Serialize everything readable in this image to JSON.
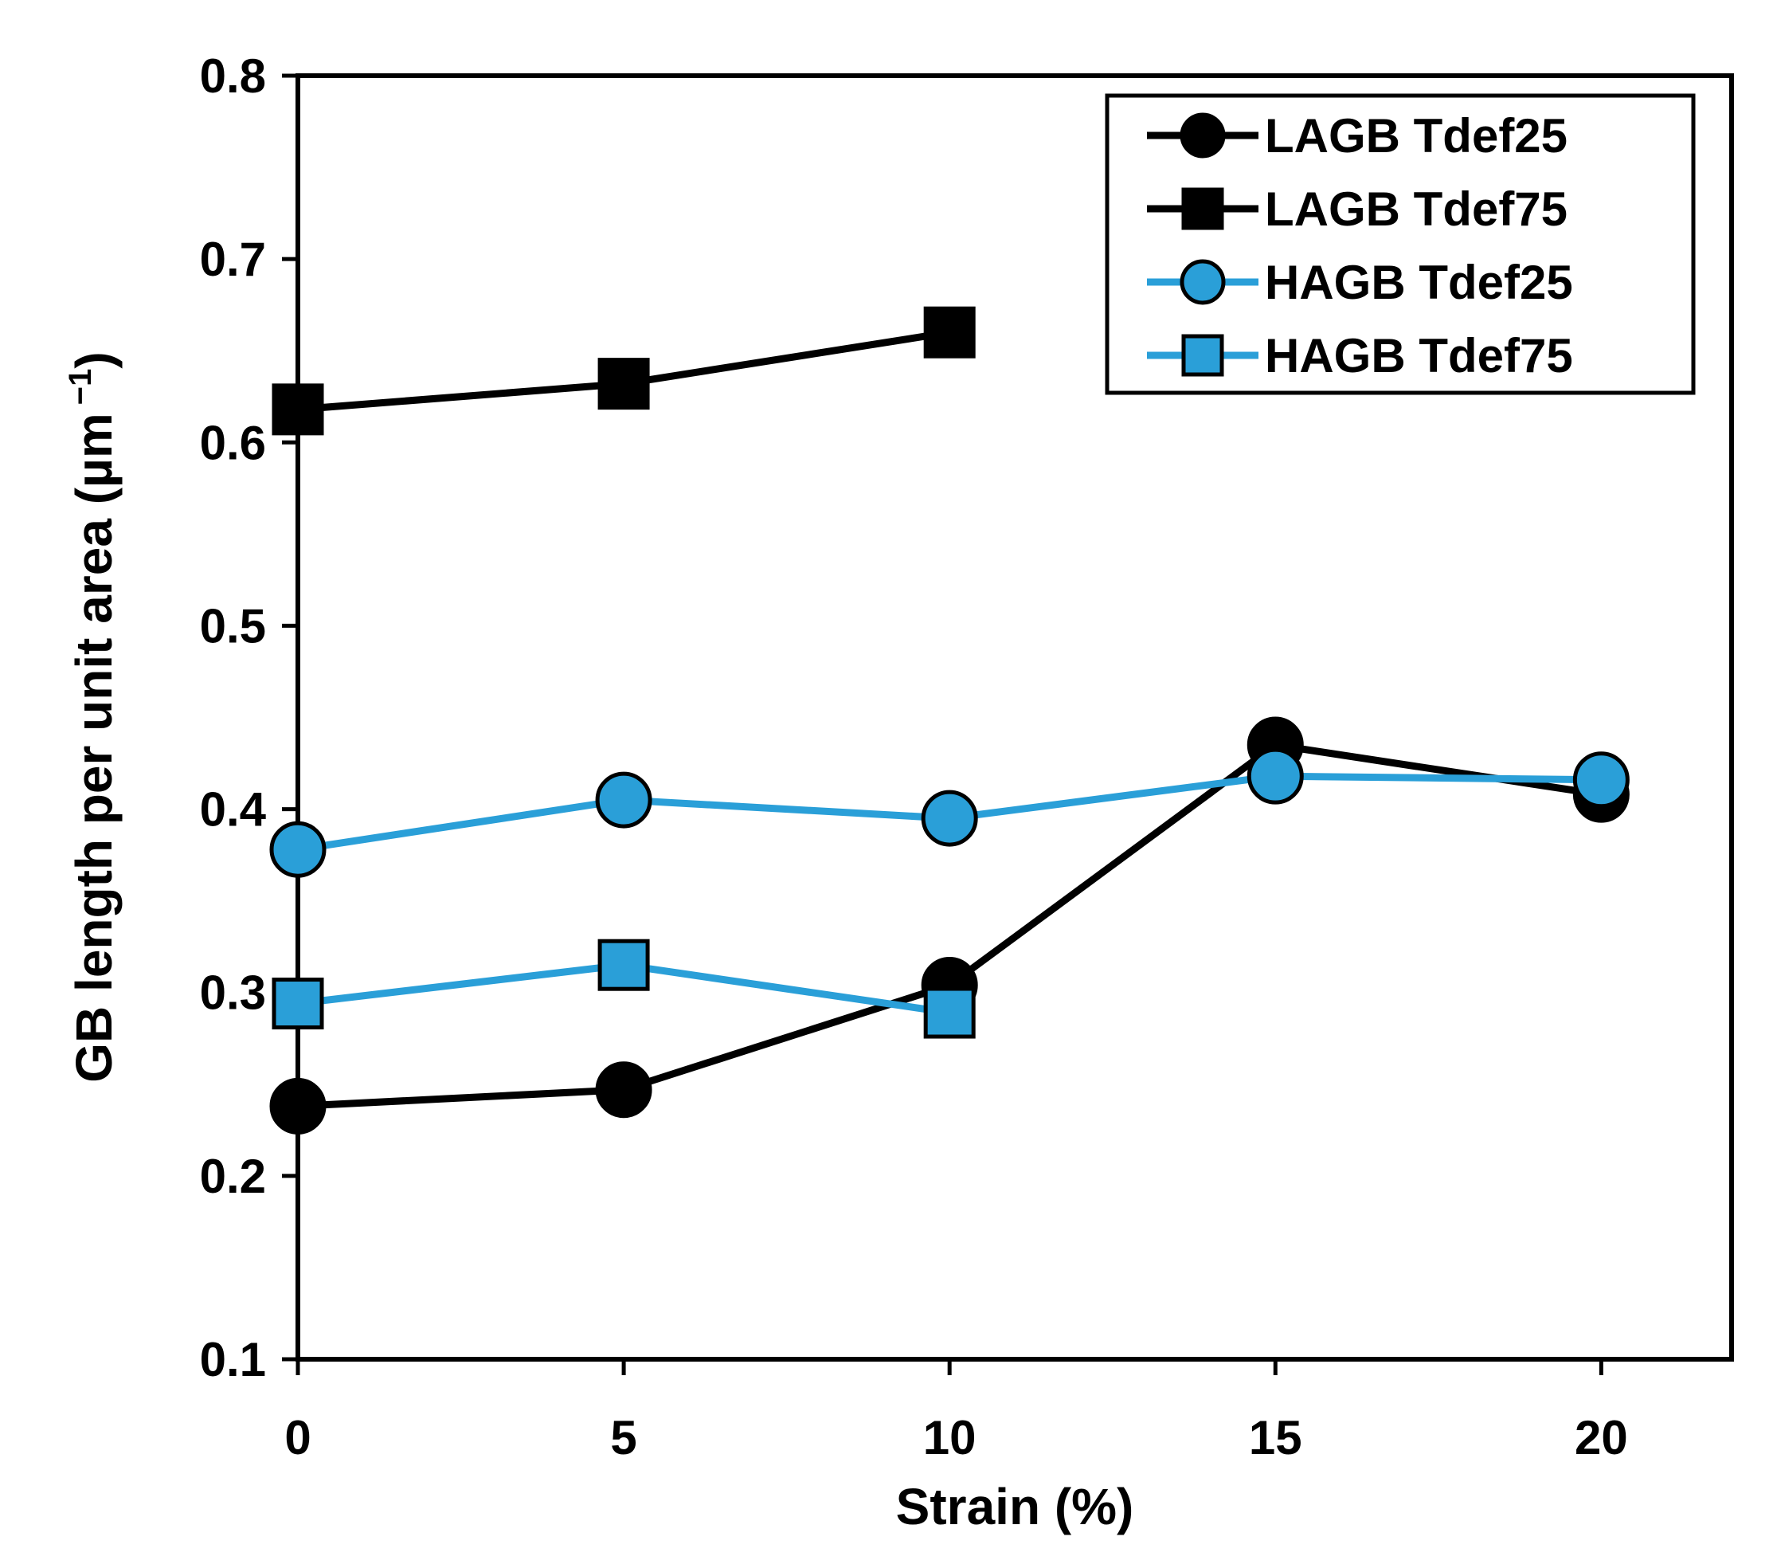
{
  "chart_data": {
    "type": "line",
    "title": "",
    "xlabel": "Strain (%)",
    "ylabel_main": "GB length per unit area  (µm",
    "ylabel_sup": "−1",
    "ylabel_close": ")",
    "xlim": [
      0,
      22
    ],
    "ylim": [
      0.1,
      0.8
    ],
    "xticks": [
      0,
      5,
      10,
      15,
      20
    ],
    "xtick_labels": [
      "0",
      "5",
      "10",
      "15",
      "20"
    ],
    "yticks": [
      0.1,
      0.2,
      0.3,
      0.4,
      0.5,
      0.6,
      0.7,
      0.8
    ],
    "ytick_labels": [
      "0.1",
      "0.2",
      "0.3",
      "0.4",
      "0.5",
      "0.6",
      "0.7",
      "0.8"
    ],
    "legend_position": "top-right",
    "series": [
      {
        "name": "LAGB Tdef25",
        "marker": "circle",
        "color": "#000000",
        "x": [
          0,
          5,
          10,
          15,
          20
        ],
        "y": [
          0.238,
          0.247,
          0.304,
          0.435,
          0.408
        ]
      },
      {
        "name": "LAGB Tdef75",
        "marker": "square",
        "color": "#000000",
        "x": [
          0,
          5,
          10
        ],
        "y": [
          0.618,
          0.632,
          0.66
        ]
      },
      {
        "name": "HAGB Tdef25",
        "marker": "circle",
        "color": "#2A9FD8",
        "x": [
          0,
          5,
          10,
          15,
          20
        ],
        "y": [
          0.378,
          0.405,
          0.395,
          0.418,
          0.416
        ]
      },
      {
        "name": "HAGB Tdef75",
        "marker": "square",
        "color": "#2A9FD8",
        "x": [
          0,
          5,
          10
        ],
        "y": [
          0.294,
          0.315,
          0.289
        ]
      }
    ]
  }
}
